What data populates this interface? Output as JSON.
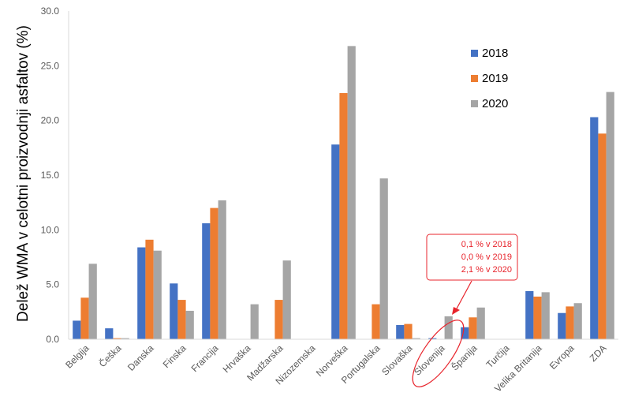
{
  "chart_data": {
    "type": "bar",
    "ylabel": "Delež WMA v celotni proizvodnji asfaltov (%)",
    "xlabel": "",
    "ylim": [
      0,
      30
    ],
    "yticks": [
      "0.0",
      "5.0",
      "10.0",
      "15.0",
      "20.0",
      "25.0",
      "30.0"
    ],
    "categories": [
      "Belgija",
      "Češka",
      "Danska",
      "Finska",
      "Francija",
      "Hrvaška",
      "Madžarska",
      "Nizozemska",
      "Norveška",
      "Portugalska",
      "Slovaška",
      "Slovenija",
      "Španija",
      "Turčija",
      "Velika Britanija",
      "Evropa",
      "ZDA"
    ],
    "series": [
      {
        "name": "2018",
        "color": "#4472c4",
        "values": [
          1.7,
          1.0,
          8.4,
          5.1,
          10.6,
          0,
          0,
          0,
          17.8,
          0,
          1.3,
          0.1,
          1.1,
          0,
          4.4,
          2.4,
          20.3
        ]
      },
      {
        "name": "2019",
        "color": "#ed7d31",
        "values": [
          3.8,
          0.1,
          9.1,
          3.6,
          12.0,
          0,
          3.6,
          0,
          22.5,
          3.2,
          1.4,
          0.0,
          2.0,
          0,
          3.9,
          3.0,
          18.8
        ]
      },
      {
        "name": "2020",
        "color": "#a5a5a5",
        "values": [
          6.9,
          0.1,
          8.1,
          2.6,
          12.7,
          3.2,
          7.2,
          0,
          26.8,
          14.7,
          0.1,
          2.1,
          2.9,
          0,
          4.3,
          3.3,
          22.6
        ]
      }
    ],
    "legend_position": "top-right",
    "grid": false,
    "annotation": {
      "lines": [
        "0,1 % v 2018",
        "0,0 % v 2019",
        "2,1 % v 2020"
      ],
      "target": "Slovenija",
      "color": "#e8242c"
    }
  }
}
